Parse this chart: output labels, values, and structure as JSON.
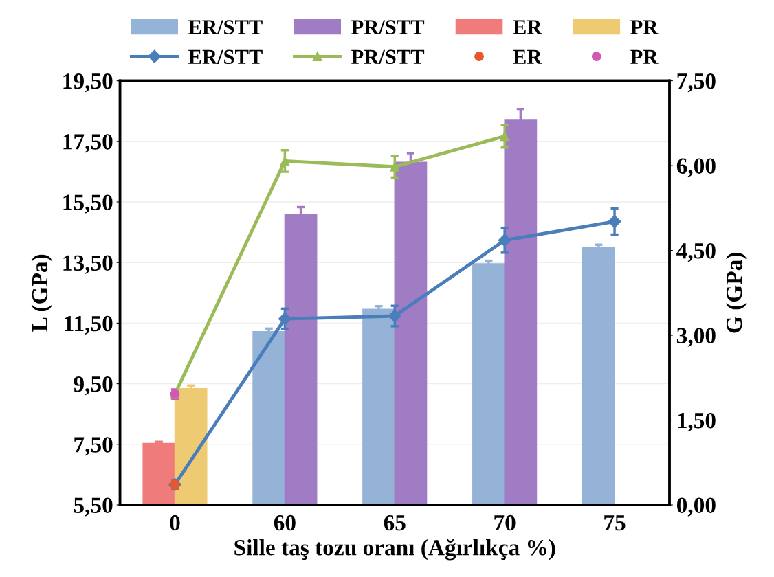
{
  "chart_data": {
    "type": "bar",
    "xlabel": "Sille taş tozu oranı (Ağırlıkça %)",
    "ylabel": "L (GPa)",
    "y2label": "G (GPa)",
    "categories": [
      "0",
      "60",
      "65",
      "70",
      "75"
    ],
    "series": [
      {
        "name": "ER/STT",
        "color": "#95b3d7",
        "values": [
          null,
          11.22,
          11.96,
          13.46,
          13.99
        ],
        "errors": [
          null,
          0.1,
          0.1,
          0.1,
          0.1
        ]
      },
      {
        "name": "PR/STT",
        "color": "#a07cc5",
        "values": [
          null,
          15.08,
          16.81,
          18.22,
          null
        ],
        "errors": [
          null,
          0.25,
          0.3,
          0.35,
          null
        ]
      },
      {
        "name": "ER",
        "color": "#f07b7b",
        "values": [
          7.53,
          null,
          null,
          null,
          null
        ],
        "errors": [
          0.05,
          null,
          null,
          null,
          null
        ]
      },
      {
        "name": "PR",
        "color": "#eecb73",
        "values": [
          9.34,
          null,
          null,
          null,
          null
        ],
        "errors": [
          0.1,
          null,
          null,
          null,
          null
        ]
      },
      {
        "name": "ER/STT",
        "type": "line",
        "axis": "y2",
        "marker": "diamond",
        "color": "#4a7ebb",
        "values": [
          0.36,
          3.29,
          3.34,
          4.68,
          5.01
        ],
        "errors": [
          null,
          0.18,
          0.18,
          0.22,
          0.23
        ]
      },
      {
        "name": "PR/STT",
        "type": "line",
        "axis": "y2",
        "marker": "triangle",
        "color": "#9bbb59",
        "values": [
          1.96,
          6.08,
          5.98,
          6.52,
          null
        ],
        "errors": [
          null,
          0.19,
          0.19,
          0.2,
          null
        ]
      },
      {
        "name": "ER",
        "type": "scatter",
        "axis": "y2",
        "marker": "circle",
        "color": "#e9582a",
        "values": [
          0.36,
          null,
          null,
          null,
          null
        ],
        "errors": [
          0.08,
          null,
          null,
          null,
          null
        ]
      },
      {
        "name": "PR",
        "type": "scatter",
        "axis": "y2",
        "marker": "circle",
        "color": "#d158b5",
        "values": [
          1.96,
          null,
          null,
          null,
          null
        ],
        "errors": [
          0.08,
          null,
          null,
          null,
          null
        ]
      }
    ],
    "ylim": [
      5.5,
      19.5
    ],
    "yticks": [
      {
        "value": 5.5,
        "label": "5,50"
      },
      {
        "value": 7.5,
        "label": "7,50"
      },
      {
        "value": 9.5,
        "label": "9,50"
      },
      {
        "value": 11.5,
        "label": "11,50"
      },
      {
        "value": 13.5,
        "label": "13,50"
      },
      {
        "value": 15.5,
        "label": "15,50"
      },
      {
        "value": 17.5,
        "label": "17,50"
      },
      {
        "value": 19.5,
        "label": "19,50"
      }
    ],
    "y2lim": [
      0,
      7.5
    ],
    "y2ticks": [
      {
        "value": 0,
        "label": "0,00"
      },
      {
        "value": 1.5,
        "label": "1,50"
      },
      {
        "value": 3,
        "label": "3,00"
      },
      {
        "value": 4.5,
        "label": "4,50"
      },
      {
        "value": 6,
        "label": "6,00"
      },
      {
        "value": 7.5,
        "label": "7,50"
      }
    ],
    "grid": "y",
    "legend": "top"
  }
}
